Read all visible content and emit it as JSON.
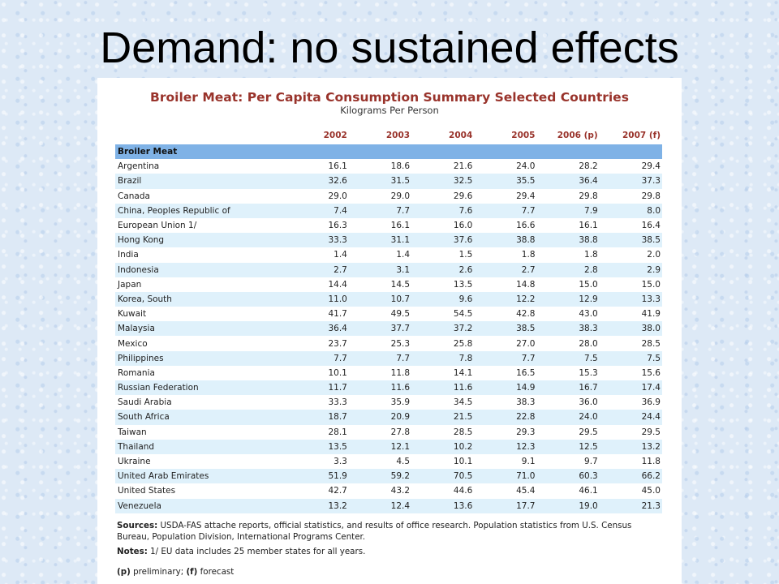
{
  "slide": {
    "title": "Demand: no sustained effects"
  },
  "table": {
    "title": "Broiler Meat:  Per Capita Consumption Summary Selected Countries",
    "subtitle": "Kilograms Per Person",
    "header_blank": "",
    "years": [
      "2002",
      "2003",
      "2004",
      "2005",
      "2006 (p)",
      "2007 (f)"
    ],
    "group_label": "Broiler Meat",
    "rows": [
      {
        "country": "Argentina",
        "values": [
          "16.1",
          "18.6",
          "21.6",
          "24.0",
          "28.2",
          "29.4"
        ]
      },
      {
        "country": "Brazil",
        "values": [
          "32.6",
          "31.5",
          "32.5",
          "35.5",
          "36.4",
          "37.3"
        ]
      },
      {
        "country": "Canada",
        "values": [
          "29.0",
          "29.0",
          "29.6",
          "29.4",
          "29.8",
          "29.8"
        ]
      },
      {
        "country": "China, Peoples Republic of",
        "values": [
          "7.4",
          "7.7",
          "7.6",
          "7.7",
          "7.9",
          "8.0"
        ]
      },
      {
        "country": "European Union 1/",
        "values": [
          "16.3",
          "16.1",
          "16.0",
          "16.6",
          "16.1",
          "16.4"
        ]
      },
      {
        "country": "Hong Kong",
        "values": [
          "33.3",
          "31.1",
          "37.6",
          "38.8",
          "38.8",
          "38.5"
        ]
      },
      {
        "country": "India",
        "values": [
          "1.4",
          "1.4",
          "1.5",
          "1.8",
          "1.8",
          "2.0"
        ]
      },
      {
        "country": "Indonesia",
        "values": [
          "2.7",
          "3.1",
          "2.6",
          "2.7",
          "2.8",
          "2.9"
        ]
      },
      {
        "country": "Japan",
        "values": [
          "14.4",
          "14.5",
          "13.5",
          "14.8",
          "15.0",
          "15.0"
        ]
      },
      {
        "country": "Korea, South",
        "values": [
          "11.0",
          "10.7",
          "9.6",
          "12.2",
          "12.9",
          "13.3"
        ]
      },
      {
        "country": "Kuwait",
        "values": [
          "41.7",
          "49.5",
          "54.5",
          "42.8",
          "43.0",
          "41.9"
        ]
      },
      {
        "country": "Malaysia",
        "values": [
          "36.4",
          "37.7",
          "37.2",
          "38.5",
          "38.3",
          "38.0"
        ]
      },
      {
        "country": "Mexico",
        "values": [
          "23.7",
          "25.3",
          "25.8",
          "27.0",
          "28.0",
          "28.5"
        ]
      },
      {
        "country": "Philippines",
        "values": [
          "7.7",
          "7.7",
          "7.8",
          "7.7",
          "7.5",
          "7.5"
        ]
      },
      {
        "country": "Romania",
        "values": [
          "10.1",
          "11.8",
          "14.1",
          "16.5",
          "15.3",
          "15.6"
        ]
      },
      {
        "country": "Russian Federation",
        "values": [
          "11.7",
          "11.6",
          "11.6",
          "14.9",
          "16.7",
          "17.4"
        ]
      },
      {
        "country": "Saudi Arabia",
        "values": [
          "33.3",
          "35.9",
          "34.5",
          "38.3",
          "36.0",
          "36.9"
        ]
      },
      {
        "country": "South Africa",
        "values": [
          "18.7",
          "20.9",
          "21.5",
          "22.8",
          "24.0",
          "24.4"
        ]
      },
      {
        "country": "Taiwan",
        "values": [
          "28.1",
          "27.8",
          "28.5",
          "29.3",
          "29.5",
          "29.5"
        ]
      },
      {
        "country": "Thailand",
        "values": [
          "13.5",
          "12.1",
          "10.2",
          "12.3",
          "12.5",
          "13.2"
        ]
      },
      {
        "country": "Ukraine",
        "values": [
          "3.3",
          "4.5",
          "10.1",
          "9.1",
          "9.7",
          "11.8"
        ]
      },
      {
        "country": "United Arab Emirates",
        "values": [
          "51.9",
          "59.2",
          "70.5",
          "71.0",
          "60.3",
          "66.2"
        ]
      },
      {
        "country": "United States",
        "values": [
          "42.7",
          "43.2",
          "44.6",
          "45.4",
          "46.1",
          "45.0"
        ]
      },
      {
        "country": "Venezuela",
        "values": [
          "13.2",
          "12.4",
          "13.6",
          "17.7",
          "19.0",
          "21.3"
        ]
      }
    ]
  },
  "notes": {
    "sources_label": "Sources:",
    "sources_text": " USDA-FAS attache reports, official statistics, and results of office research. Population statistics from U.S. Census Bureau, Population Division, International Programs Center.",
    "notes_label": "Notes:",
    "notes_text": "  1/ EU data includes 25 member states for all years.",
    "p_label": "(p)",
    "p_text": " preliminary; ",
    "f_label": "(f)",
    "f_text": " forecast"
  },
  "colors": {
    "title_red": "#99332b",
    "group_blue": "#7fb2e6",
    "stripe_light_blue": "#dff1fb",
    "slide_background": "#dde9f6"
  }
}
